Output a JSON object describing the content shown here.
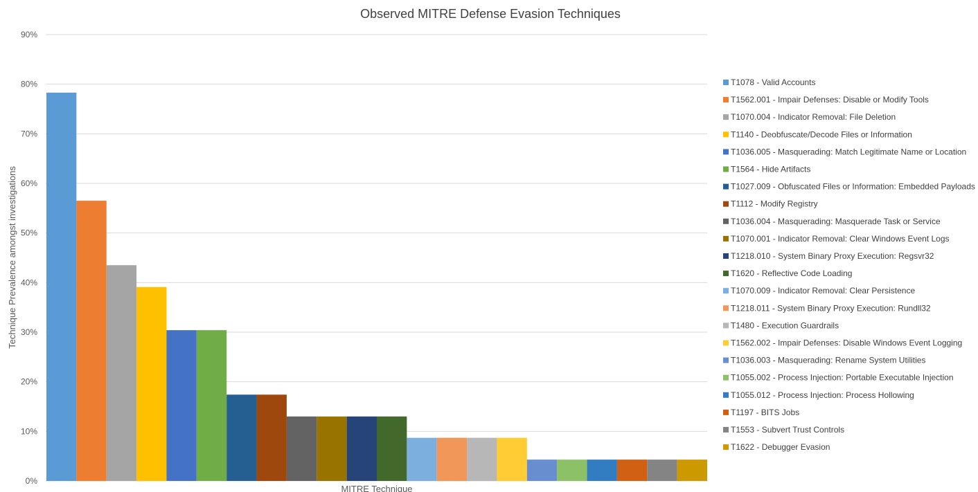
{
  "chart_data": {
    "type": "bar",
    "title": "Observed MITRE Defense Evasion Techniques",
    "xlabel": "MITRE Technique",
    "ylabel": "Technique Prevalence amongst investigations",
    "ylim": [
      0,
      90
    ],
    "yticks": [
      "0%",
      "10%",
      "20%",
      "30%",
      "40%",
      "50%",
      "60%",
      "70%",
      "80%",
      "90%"
    ],
    "grid": true,
    "legend_position": "right",
    "series": [
      {
        "name": "T1078 - Valid Accounts",
        "value": 78.3,
        "color": "#5b9bd5"
      },
      {
        "name": "T1562.001 - Impair Defenses: Disable or Modify Tools",
        "value": 56.5,
        "color": "#ed7d31"
      },
      {
        "name": "T1070.004 - Indicator Removal: File Deletion",
        "value": 43.5,
        "color": "#a5a5a5"
      },
      {
        "name": "T1140 - Deobfuscate/Decode Files or Information",
        "value": 39.1,
        "color": "#ffc000"
      },
      {
        "name": "T1036.005 - Masquerading: Match Legitimate Name or Location",
        "value": 30.4,
        "color": "#4472c4"
      },
      {
        "name": "T1564 - Hide Artifacts",
        "value": 30.4,
        "color": "#70ad47"
      },
      {
        "name": "T1027.009 - Obfuscated Files or Information: Embedded Payloads",
        "value": 17.4,
        "color": "#255e91"
      },
      {
        "name": "T1112 - Modify Registry",
        "value": 17.4,
        "color": "#9e480e"
      },
      {
        "name": "T1036.004 - Masquerading: Masquerade Task or Service",
        "value": 13.0,
        "color": "#636363"
      },
      {
        "name": "T1070.001 - Indicator Removal: Clear Windows Event Logs",
        "value": 13.0,
        "color": "#997300"
      },
      {
        "name": "T1218.010 - System Binary Proxy Execution: Regsvr32",
        "value": 13.0,
        "color": "#264478"
      },
      {
        "name": "T1620 - Reflective Code Loading",
        "value": 13.0,
        "color": "#43682b"
      },
      {
        "name": "T1070.009 - Indicator Removal: Clear Persistence",
        "value": 8.7,
        "color": "#7cafdd"
      },
      {
        "name": "T1218.011 - System Binary Proxy Execution: Rundll32",
        "value": 8.7,
        "color": "#f1975a"
      },
      {
        "name": "T1480 - Execution Guardrails",
        "value": 8.7,
        "color": "#b7b7b7"
      },
      {
        "name": "T1562.002 - Impair Defenses: Disable Windows Event Logging",
        "value": 8.7,
        "color": "#ffcd33"
      },
      {
        "name": "T1036.003 - Masquerading: Rename System Utilities",
        "value": 4.3,
        "color": "#698ed0"
      },
      {
        "name": "T1055.002 - Process Injection: Portable Executable Injection",
        "value": 4.3,
        "color": "#8cc168"
      },
      {
        "name": "T1055.012 - Process Injection: Process Hollowing",
        "value": 4.3,
        "color": "#327dc2"
      },
      {
        "name": "T1197 - BITS Jobs",
        "value": 4.3,
        "color": "#d26012"
      },
      {
        "name": "T1553 - Subvert Trust Controls",
        "value": 4.3,
        "color": "#848484"
      },
      {
        "name": "T1622 - Debugger Evasion",
        "value": 4.3,
        "color": "#cc9a00"
      }
    ]
  }
}
